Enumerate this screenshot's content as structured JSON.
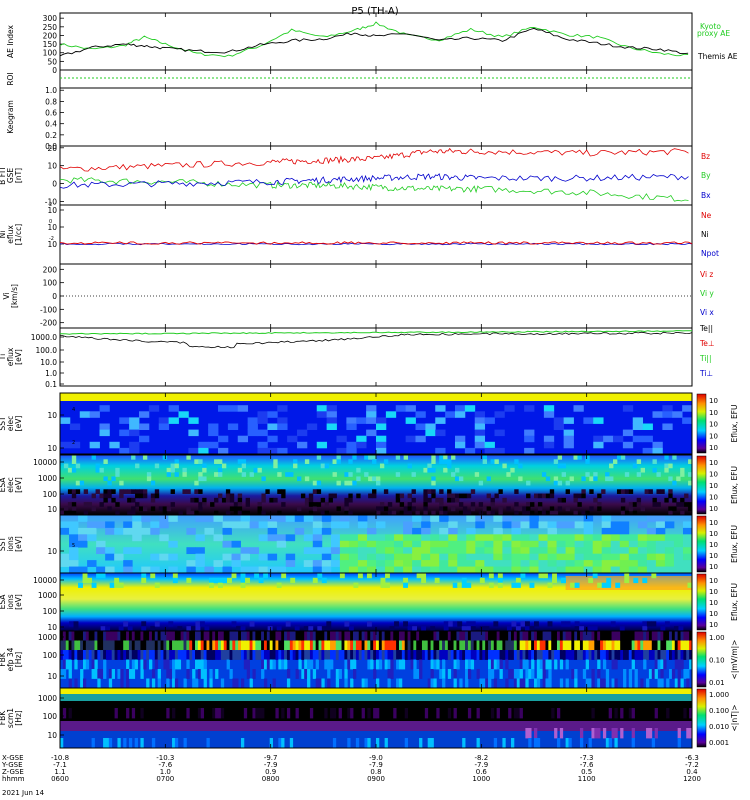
{
  "title": "P5 (TH-A)",
  "date_label": "2021 Jun 14",
  "colors": {
    "red": "#e00000",
    "green": "#22cc22",
    "blue": "#0000cc",
    "black": "#000000"
  },
  "x_axis": {
    "row_labels": [
      "X-GSE",
      "Y-GSE",
      "Z-GSE",
      "hhmm"
    ],
    "columns": [
      {
        "t": "0600",
        "x": "-10.8",
        "y": "-7.1",
        "z": "1.1"
      },
      {
        "t": "0700",
        "x": "-10.3",
        "y": "-7.6",
        "z": "1.0"
      },
      {
        "t": "0800",
        "x": "-9.7",
        "y": "-7.9",
        "z": "0.9"
      },
      {
        "t": "0900",
        "x": "-9.0",
        "y": "-7.9",
        "z": "0.8"
      },
      {
        "t": "1000",
        "x": "-8.2",
        "y": "-7.9",
        "z": "0.6"
      },
      {
        "t": "1100",
        "x": "-7.3",
        "y": "-7.6",
        "z": "0.5"
      },
      {
        "t": "1200",
        "x": "-6.3",
        "y": "-7.2",
        "z": "0.4"
      }
    ]
  },
  "chart_data": [
    {
      "type": "line",
      "ylabel": "AE Index",
      "yticks": [
        "0",
        "50",
        "100",
        "150",
        "200",
        "250",
        "300"
      ],
      "series": [
        {
          "name": "Kyoto proxy AE",
          "color": "#22cc22",
          "x": [
            6.0,
            6.3,
            6.6,
            6.8,
            7.0,
            7.3,
            7.6,
            7.9,
            8.2,
            8.5,
            8.8,
            9.0,
            9.3,
            9.6,
            9.9,
            10.2,
            10.5,
            10.8,
            11.1,
            11.4,
            11.7,
            12.0
          ],
          "values": [
            150,
            120,
            140,
            190,
            150,
            95,
            80,
            140,
            230,
            190,
            230,
            270,
            200,
            175,
            235,
            190,
            250,
            205,
            190,
            130,
            95,
            80
          ]
        },
        {
          "name": "Themis AE",
          "color": "#000000",
          "x": [
            6.0,
            6.3,
            6.6,
            6.8,
            7.0,
            7.3,
            7.6,
            7.9,
            8.2,
            8.5,
            8.8,
            9.0,
            9.3,
            9.6,
            9.9,
            10.2,
            10.5,
            10.8,
            11.1,
            11.4,
            11.7,
            12.0
          ],
          "values": [
            80,
            130,
            150,
            140,
            125,
            110,
            105,
            145,
            170,
            180,
            215,
            195,
            210,
            170,
            185,
            170,
            240,
            180,
            155,
            130,
            120,
            90
          ]
        }
      ]
    },
    {
      "type": "line",
      "ylabel": "ROI",
      "yticks": []
    },
    {
      "type": "heatmap",
      "ylabel": "Keogram",
      "yticks": [
        "0.0",
        "0.2",
        "0.4",
        "0.6",
        "0.8",
        "1.0"
      ]
    },
    {
      "type": "line",
      "ylabel": "B FIT GSE [nT]",
      "yticks": [
        "-10",
        "0",
        "10",
        "20"
      ],
      "series": [
        {
          "name": "Bz",
          "color": "#e00000",
          "x": [
            6.0,
            7.0,
            8.0,
            8.5,
            9.0,
            9.5,
            10.0,
            11.0,
            12.0
          ],
          "values": [
            8,
            10,
            12,
            13,
            14,
            18,
            18,
            17,
            18
          ]
        },
        {
          "name": "By",
          "color": "#22cc22",
          "x": [
            6.0,
            7.0,
            8.0,
            8.5,
            9.0,
            9.5,
            10.0,
            11.0,
            12.0
          ],
          "values": [
            2,
            1,
            -1,
            -1,
            -2,
            -3,
            -3,
            -5,
            -9
          ]
        },
        {
          "name": "Bx",
          "color": "#0000cc",
          "x": [
            6.0,
            7.0,
            8.0,
            8.5,
            9.0,
            9.5,
            10.0,
            11.0,
            12.0
          ],
          "values": [
            -1,
            0,
            1,
            2,
            3,
            4,
            3,
            3,
            4
          ]
        }
      ]
    },
    {
      "type": "line",
      "ylabel": "Ni [1/cc]",
      "yticks": [
        "10",
        "10",
        "10"
      ],
      "legend": [
        "Ne",
        "Ni",
        "Npot"
      ],
      "legend_colors": [
        "#e00000",
        "#000000",
        "#0000cc"
      ]
    },
    {
      "type": "line",
      "ylabel": "Vi [km/s]",
      "yticks": [
        "200",
        "100",
        "0",
        "-100",
        "-200"
      ],
      "legend": [
        "Vi z",
        "Vi y",
        "Vi x"
      ],
      "legend_colors": [
        "#e00000",
        "#22cc22",
        "#0000cc"
      ]
    },
    {
      "type": "line",
      "ylabel": "Ti [eV]",
      "yticks": [
        "1000.0",
        "100.0",
        "10.0",
        "1.0",
        "0.1"
      ],
      "legend": [
        "Te||",
        "Te⊥",
        "Ti||",
        "Ti⊥"
      ],
      "legend_colors": [
        "#000000",
        "#e00000",
        "#22cc22",
        "#0000cc"
      ]
    },
    {
      "type": "heatmap",
      "ylabel": "SST [eV]",
      "cbar_label": "Eflux, EFU"
    },
    {
      "type": "heatmap",
      "ylabel": "ESA [eV]",
      "yticks": [
        "10000",
        "1000",
        "100",
        "10"
      ],
      "cbar_label": "Eflux, EFU"
    },
    {
      "type": "heatmap",
      "ylabel": "SST [eV]",
      "cbar_label": "Eflux, EFU"
    },
    {
      "type": "heatmap",
      "ylabel": "ESA [eV]",
      "yticks": [
        "10000",
        "1000",
        "100",
        "10"
      ],
      "cbar_label": "Eflux, EFU"
    },
    {
      "type": "heatmap",
      "ylabel": "FBK [Hz]",
      "yticks": [
        "1000",
        "100",
        "10"
      ],
      "cbar_label": "<|mV/m|>",
      "cbar_ticks": [
        "1.00",
        "0.10",
        "0.01"
      ]
    },
    {
      "type": "heatmap",
      "ylabel": "FBK [Hz]",
      "yticks": [
        "1000",
        "100",
        "10"
      ],
      "cbar_label": "<|nT|>",
      "cbar_ticks": [
        "1.000",
        "0.100",
        "0.010",
        "0.001"
      ]
    }
  ]
}
